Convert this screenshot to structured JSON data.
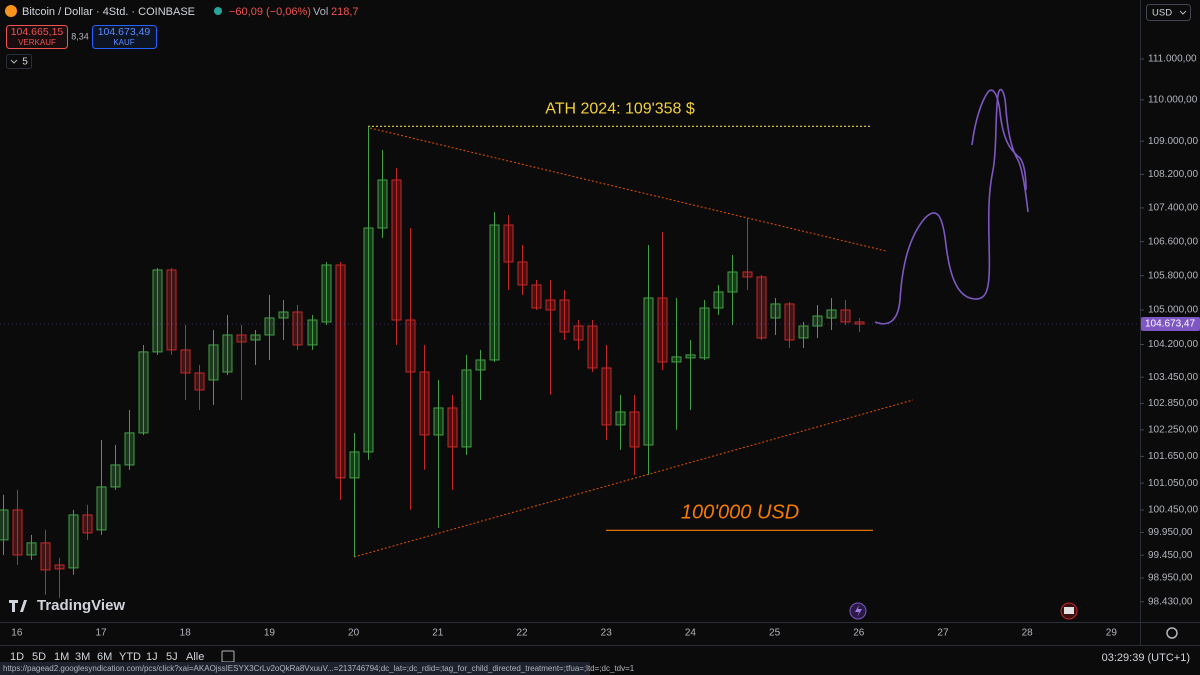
{
  "header": {
    "symbol": "Bitcoin / Dollar · 4Std. · COINBASE",
    "change": "−60,09 (−0,06%)",
    "volume_label": "Vol",
    "volume": "218,7",
    "sell": {
      "price": "104.665,15",
      "label": "VERKAUF"
    },
    "spread": "8,34",
    "buy": {
      "price": "104.673,49",
      "label": "KAUF"
    },
    "indicators_count": "5"
  },
  "currency": "USD",
  "logo": "TradingView",
  "footer": {
    "ranges": [
      "1D",
      "5D",
      "1M",
      "3M",
      "6M",
      "YTD",
      "1J",
      "5J",
      "Alle"
    ],
    "clock": "03:29:39 (UTC+1)",
    "status_url": "https://pagead2.googlesyndication.com/pcs/click?xai=AKAOjssIESYX3CrLv2oQkRa8VxuuV...=213746794;dc_lat=;dc_rdid=;tag_for_child_directed_treatment=;tfua=;ltd=;dc_tdv=1"
  },
  "chart_data": {
    "type": "candlestick",
    "up_color": "#43a047",
    "down_color": "#c62828",
    "log_scale": true,
    "grid": false,
    "xlim": [
      15.8,
      29.34
    ],
    "xticks": [
      16,
      17,
      18,
      19,
      20,
      21,
      22,
      23,
      24,
      25,
      26,
      27,
      28,
      29
    ],
    "ylim": [
      97990,
      112460
    ],
    "yticks": [
      {
        "value": 111000,
        "label": "111.000,00"
      },
      {
        "value": 110000,
        "label": "110.000,00"
      },
      {
        "value": 109000,
        "label": "109.000,00"
      },
      {
        "value": 108200,
        "label": "108.200,00"
      },
      {
        "value": 107400,
        "label": "107.400,00"
      },
      {
        "value": 106600,
        "label": "106.600,00"
      },
      {
        "value": 105800,
        "label": "105.800,00"
      },
      {
        "value": 105000,
        "label": "105.000,00"
      },
      {
        "value": 104200,
        "label": "104.200,00"
      },
      {
        "value": 103450,
        "label": "103.450,00"
      },
      {
        "value": 102850,
        "label": "102.850,00"
      },
      {
        "value": 102250,
        "label": "102.250,00"
      },
      {
        "value": 101650,
        "label": "101.650,00"
      },
      {
        "value": 101050,
        "label": "101.050,00"
      },
      {
        "value": 100450,
        "label": "100.450,00"
      },
      {
        "value": 99950,
        "label": "99.950,00"
      },
      {
        "value": 99450,
        "label": "99.450,00"
      },
      {
        "value": 98950,
        "label": "98.950,00"
      },
      {
        "value": 98430,
        "label": "98.430,00"
      }
    ],
    "last_price": {
      "value": 104673.47,
      "label": "104.673,47",
      "color": "#7e57c2"
    },
    "annotations": [
      {
        "text": "ATH 2024: 109'358 $",
        "value": 109358,
        "color": "#f2d03b"
      },
      {
        "text": "100'000 USD",
        "value": 100000,
        "color": "#f57c00"
      }
    ],
    "x": [
      15.833,
      16,
      16.167,
      16.333,
      16.5,
      16.667,
      16.833,
      17,
      17.167,
      17.333,
      17.5,
      17.667,
      17.833,
      18,
      18.167,
      18.333,
      18.5,
      18.667,
      18.833,
      19,
      19.167,
      19.333,
      19.5,
      19.667,
      19.833,
      20,
      20.167,
      20.333,
      20.5,
      20.667,
      20.833,
      21,
      21.167,
      21.333,
      21.5,
      21.667,
      21.833,
      22,
      22.167,
      22.333,
      22.5,
      22.667,
      22.833,
      23,
      23.167,
      23.333,
      23.5,
      23.667,
      23.833,
      24,
      24.167,
      24.333,
      24.5,
      24.667,
      24.833,
      25,
      25.167,
      25.333,
      25.5,
      25.667,
      25.833,
      26
    ],
    "open": [
      99788,
      100452,
      99456,
      99722,
      99236,
      99171,
      100341,
      100009,
      100965,
      101458,
      102180,
      104029,
      105934,
      104075,
      103545,
      103385,
      103568,
      104420,
      104305,
      104420,
      104814,
      104953,
      104190,
      104721,
      106051,
      101167,
      101751,
      106923,
      108066,
      104767,
      103568,
      102134,
      102746,
      101863,
      103614,
      103844,
      106994,
      106122,
      105583,
      105232,
      105232,
      104628,
      104628,
      103660,
      102361,
      102655,
      101908,
      105279,
      103798,
      103891,
      103891,
      105046,
      105419,
      105887,
      105770,
      104814,
      105140,
      104351,
      104628,
      104814,
      105000,
      104721
    ],
    "high": [
      100787,
      100898,
      99898,
      100009,
      99390,
      100452,
      100564,
      102021,
      101908,
      102700,
      104190,
      105981,
      105981,
      104650,
      103729,
      104535,
      104884,
      104650,
      104535,
      105349,
      105232,
      105116,
      104884,
      106122,
      106122,
      102180,
      109358,
      108786,
      108354,
      106923,
      104190,
      103385,
      103043,
      103960,
      104075,
      107303,
      107231,
      106522,
      105700,
      105700,
      105466,
      104767,
      104767,
      104190,
      103043,
      103043,
      106522,
      106829,
      105279,
      104305,
      105232,
      105583,
      106286,
      107160,
      105817,
      105279,
      105186,
      104721,
      105116,
      105279,
      105232,
      104814
    ],
    "low": [
      99456,
      99236,
      99346,
      98580,
      98514,
      99017,
      99788,
      99898,
      100898,
      101346,
      102134,
      103960,
      103960,
      102928,
      102700,
      102814,
      103500,
      102928,
      103729,
      103844,
      104305,
      104075,
      104075,
      104650,
      100676,
      99412,
      101571,
      106687,
      104190,
      100452,
      101346,
      100053,
      100898,
      101683,
      102928,
      103798,
      105466,
      105349,
      105000,
      103043,
      104305,
      104075,
      103568,
      102021,
      101796,
      101234,
      101234,
      103614,
      102248,
      102700,
      103844,
      104884,
      104650,
      105466,
      104305,
      104420,
      104121,
      104121,
      104351,
      104535,
      104650,
      104489
    ],
    "close": [
      100452,
      99456,
      99722,
      99127,
      99149,
      100341,
      99943,
      100965,
      101458,
      102180,
      104029,
      105934,
      104075,
      103545,
      103157,
      104190,
      104420,
      104259,
      104420,
      104814,
      104953,
      104190,
      104767,
      106051,
      101167,
      101751,
      106923,
      108066,
      104767,
      103568,
      102134,
      102746,
      101863,
      103614,
      103844,
      106994,
      106122,
      105583,
      105046,
      105000,
      104489,
      104305,
      103660,
      102361,
      102655,
      101863,
      105279,
      103798,
      103914,
      103960,
      105046,
      105419,
      105887,
      105770,
      104351,
      105140,
      104305,
      104628,
      104860,
      105000,
      104721,
      104673.47
    ]
  }
}
